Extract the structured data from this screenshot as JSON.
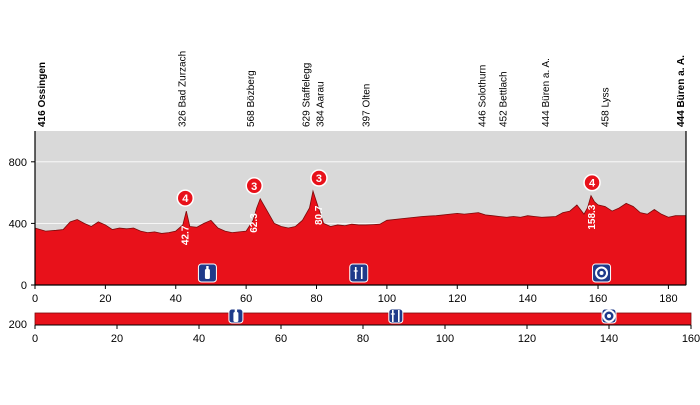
{
  "colors": {
    "profile": "#e8111a",
    "profile_outline": "#7a0a0a",
    "sky_band": "#d9d9d9",
    "badge": "#e8111a",
    "icon_bg": "#1f3a8a"
  },
  "chart_data": [
    {
      "type": "area",
      "xlim": [
        0,
        185
      ],
      "ylim": [
        0,
        1000
      ],
      "yticks": [
        0,
        400,
        800
      ],
      "xticks": [
        0,
        20,
        40,
        60,
        80,
        100,
        120,
        140,
        160,
        180
      ],
      "series": [
        {
          "x": [
            0,
            3,
            6,
            8,
            10,
            12,
            14,
            16,
            18,
            20,
            22,
            24,
            26,
            28,
            30,
            32,
            34,
            36,
            38,
            40,
            42,
            43,
            44,
            46,
            48,
            50,
            52,
            54,
            56,
            58,
            60,
            62,
            63,
            64,
            66,
            68,
            70,
            72,
            74,
            76,
            78,
            79,
            80,
            82,
            84,
            86,
            88,
            90,
            92,
            94,
            96,
            98,
            100,
            102,
            104,
            106,
            108,
            110,
            112,
            114,
            116,
            118,
            120,
            122,
            124,
            126,
            128,
            130,
            132,
            134,
            136,
            138,
            140,
            142,
            144,
            146,
            148,
            150,
            152,
            154,
            156,
            157,
            158,
            159,
            160,
            162,
            164,
            166,
            168,
            170,
            172,
            174,
            176,
            178,
            180,
            182,
            185
          ],
          "y": [
            370,
            350,
            355,
            360,
            410,
            425,
            400,
            380,
            410,
            390,
            360,
            370,
            365,
            370,
            350,
            340,
            345,
            335,
            340,
            350,
            390,
            480,
            380,
            375,
            400,
            420,
            370,
            350,
            340,
            345,
            350,
            420,
            500,
            560,
            480,
            400,
            380,
            370,
            380,
            420,
            500,
            610,
            540,
            400,
            380,
            390,
            385,
            395,
            390,
            390,
            392,
            395,
            420,
            425,
            430,
            435,
            440,
            445,
            448,
            450,
            455,
            460,
            465,
            460,
            465,
            470,
            455,
            450,
            445,
            440,
            445,
            440,
            450,
            445,
            440,
            442,
            445,
            470,
            480,
            520,
            460,
            500,
            580,
            540,
            520,
            510,
            480,
            500,
            530,
            510,
            470,
            460,
            490,
            460,
            440,
            450,
            450
          ]
        }
      ],
      "labels": [
        {
          "x": 0,
          "text": "416 Ossingen",
          "bold": true
        },
        {
          "x": 42.7,
          "text": "326 Bad Zurzach",
          "bold": false
        },
        {
          "x": 62.3,
          "text": "568 Bözberg",
          "bold": false
        },
        {
          "x": 78,
          "text": "629 Staffelegg",
          "bold": false
        },
        {
          "x": 82,
          "text": "384 Aarau",
          "bold": false
        },
        {
          "x": 95,
          "text": "397 Olten",
          "bold": false
        },
        {
          "x": 128,
          "text": "446 Solothurn",
          "bold": false
        },
        {
          "x": 134,
          "text": "452 Bettlach",
          "bold": false
        },
        {
          "x": 146,
          "text": "444 Büren a. A.",
          "bold": false
        },
        {
          "x": 163,
          "text": "458 Lyss",
          "bold": false
        },
        {
          "x": 185,
          "text": "444 Büren a. A.",
          "bold": true
        }
      ],
      "climbs": [
        {
          "x": 42.7,
          "y": 480,
          "category": "4",
          "km": "42.7"
        },
        {
          "x": 62.3,
          "y": 560,
          "category": "3",
          "km": "62.3"
        },
        {
          "x": 80.7,
          "y": 610,
          "category": "3",
          "km": "80.7"
        },
        {
          "x": 158.3,
          "y": 580,
          "category": "4",
          "km": "158.3"
        }
      ],
      "icons": [
        {
          "x": 49,
          "name": "bottle-icon"
        },
        {
          "x": 92,
          "name": "feed-zone-icon"
        },
        {
          "x": 161,
          "name": "service-icon"
        }
      ]
    },
    {
      "type": "bar",
      "xlim": [
        0,
        160
      ],
      "xticks": [
        0,
        20,
        40,
        60,
        80,
        100,
        120,
        140,
        160
      ],
      "y_label_left": "200",
      "icons": [
        {
          "x": 49,
          "name": "bottle-icon"
        },
        {
          "x": 88,
          "name": "feed-zone-icon"
        },
        {
          "x": 140,
          "name": "service-icon"
        }
      ]
    }
  ]
}
